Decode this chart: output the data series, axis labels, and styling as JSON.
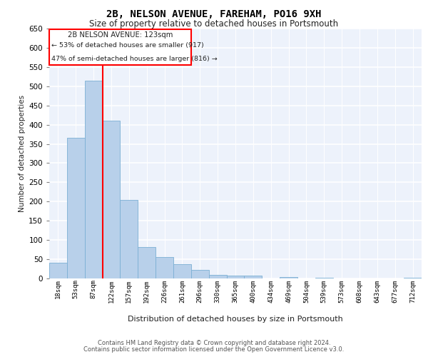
{
  "title1": "2B, NELSON AVENUE, FAREHAM, PO16 9XH",
  "title2": "Size of property relative to detached houses in Portsmouth",
  "xlabel": "Distribution of detached houses by size in Portsmouth",
  "ylabel": "Number of detached properties",
  "categories": [
    "18sqm",
    "53sqm",
    "87sqm",
    "122sqm",
    "157sqm",
    "192sqm",
    "226sqm",
    "261sqm",
    "296sqm",
    "330sqm",
    "365sqm",
    "400sqm",
    "434sqm",
    "469sqm",
    "504sqm",
    "539sqm",
    "573sqm",
    "608sqm",
    "643sqm",
    "677sqm",
    "712sqm"
  ],
  "values": [
    40,
    365,
    515,
    410,
    205,
    82,
    55,
    38,
    22,
    10,
    7,
    7,
    0,
    3,
    0,
    2,
    0,
    0,
    0,
    0,
    2
  ],
  "bar_color": "#b8d0ea",
  "bar_edge_color": "#7bafd4",
  "background_color": "#edf2fb",
  "ylim": [
    0,
    650
  ],
  "yticks": [
    0,
    50,
    100,
    150,
    200,
    250,
    300,
    350,
    400,
    450,
    500,
    550,
    600,
    650
  ],
  "property_line_idx": 3,
  "annotation_line1": "2B NELSON AVENUE: 123sqm",
  "annotation_line2": "← 53% of detached houses are smaller (917)",
  "annotation_line3": "47% of semi-detached houses are larger (816) →",
  "footer1": "Contains HM Land Registry data © Crown copyright and database right 2024.",
  "footer2": "Contains public sector information licensed under the Open Government Licence v3.0."
}
